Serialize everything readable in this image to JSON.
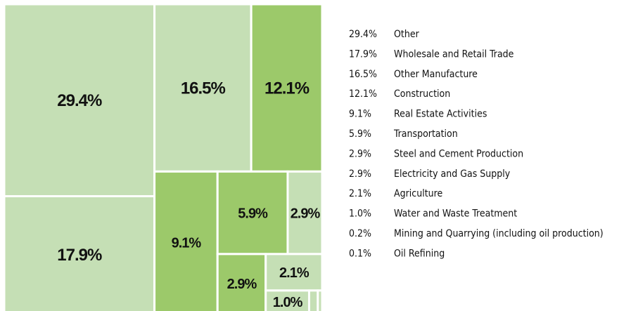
{
  "chart_data": {
    "type": "treemap",
    "categories": [
      "Other",
      "Wholesale and Retail Trade",
      "Other Manufacture",
      "Construction",
      "Real Estate Activities",
      "Transportation",
      "Steel and Cement Production",
      "Electricity and Gas Supply",
      "Agriculture",
      "Water and Waste Treatment",
      "Mining and Quarrying (including oil production)",
      "Oil Refining"
    ],
    "values": [
      29.4,
      17.9,
      16.5,
      12.1,
      9.1,
      5.9,
      2.9,
      2.9,
      2.1,
      1.0,
      0.2,
      0.1
    ],
    "value_labels": [
      "29.4%",
      "17.9%",
      "16.5%",
      "12.1%",
      "9.1%",
      "5.9%",
      "2.9%",
      "2.9%",
      "2.1%",
      "1.0%",
      "0.2%",
      "0.1%"
    ],
    "colors": [
      "#c5dfb5",
      "#c5dfb5",
      "#c5dfb5",
      "#9cc96a",
      "#9cc96a",
      "#9cc96a",
      "#c5dfb5",
      "#9cc96a",
      "#c5dfb5",
      "#c5dfb5",
      "#c5dfb5",
      "#c5dfb5"
    ]
  }
}
